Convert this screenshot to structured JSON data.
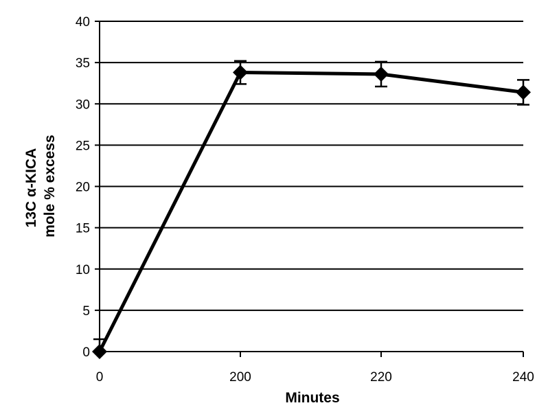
{
  "chart_data": {
    "type": "line",
    "title": "",
    "xlabel": "Minutes",
    "ylabel_lines": [
      "13C α-KICA",
      "mole % excess"
    ],
    "categories": [
      "0",
      "200",
      "220",
      "240"
    ],
    "series": [
      {
        "values": [
          0,
          33.8,
          33.6,
          31.4
        ],
        "error": [
          1.5,
          1.4,
          1.5,
          1.5
        ],
        "marker": "diamond",
        "color": "#000000"
      }
    ],
    "ylim": [
      0,
      40
    ],
    "yticks": [
      0,
      5,
      10,
      15,
      20,
      25,
      30,
      35,
      40
    ],
    "grid": "horizontal",
    "legend": "none"
  }
}
